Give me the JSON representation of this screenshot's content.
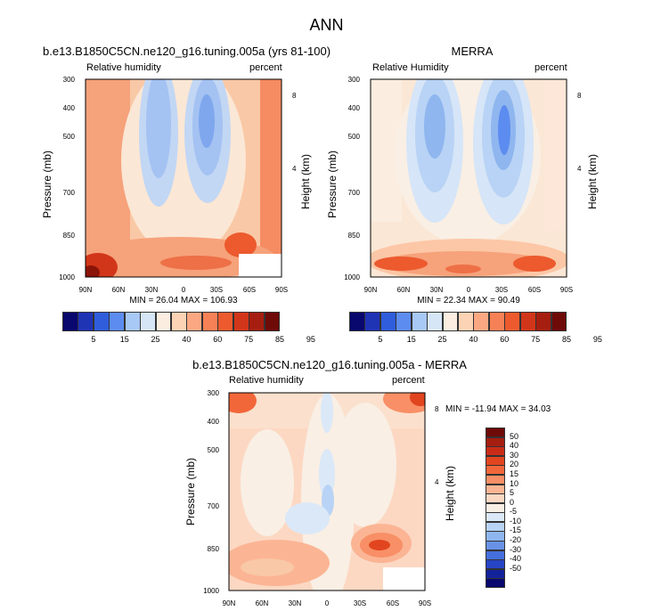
{
  "figure": {
    "title": "ANN"
  },
  "panels": [
    {
      "title": "b.e13.B1850C5CN.ne120_g16.tuning.005a (yrs 81-100)",
      "left_label": "Relative humidity",
      "right_label": "percent",
      "y_title": "Pressure (mb)",
      "y2_title": "Height (km)",
      "minmax": "MIN = 26.04  MAX = 106.93"
    },
    {
      "title": "MERRA",
      "left_label": "Relative Humidity",
      "right_label": "percent",
      "y_title": "Pressure (mb)",
      "y2_title": "Height (km)",
      "minmax": "MIN = 22.34  MAX = 90.49"
    },
    {
      "title": "b.e13.B1850C5CN.ne120_g16.tuning.005a - MERRA",
      "left_label": "Relative humidity",
      "right_label": "percent",
      "y_title": "Pressure (mb)",
      "y2_title": "Height (km)",
      "minmax": "MIN = -11.94  MAX =  34.03"
    }
  ],
  "chart_data": [
    {
      "type": "heatmap",
      "title": "b.e13.B1850C5CN.ne120_g16.tuning.005a (yrs 81-100)",
      "xlabel": "",
      "ylabel": "Pressure (mb)",
      "y2label": "Height (km)",
      "x_ticks": [
        "90N",
        "60N",
        "30N",
        "0",
        "30S",
        "60S",
        "90S"
      ],
      "y_ticks": [
        "300",
        "400",
        "500",
        "700",
        "850",
        "1000"
      ],
      "y2_ticks": [
        "8",
        "4"
      ],
      "min": 26.04,
      "max": 106.93,
      "levels": [
        5,
        15,
        25,
        40,
        60,
        75,
        85,
        95
      ]
    },
    {
      "type": "heatmap",
      "title": "MERRA",
      "xlabel": "",
      "ylabel": "Pressure (mb)",
      "y2label": "Height (km)",
      "x_ticks": [
        "90N",
        "60N",
        "30N",
        "0",
        "30S",
        "60S",
        "90S"
      ],
      "y_ticks": [
        "300",
        "400",
        "500",
        "700",
        "850",
        "1000"
      ],
      "y2_ticks": [
        "8",
        "4"
      ],
      "min": 22.34,
      "max": 90.49,
      "levels": [
        5,
        15,
        25,
        40,
        60,
        75,
        85,
        95
      ]
    },
    {
      "type": "heatmap",
      "title": "b.e13.B1850C5CN.ne120_g16.tuning.005a - MERRA",
      "xlabel": "",
      "ylabel": "Pressure (mb)",
      "y2label": "Height (km)",
      "x_ticks": [
        "90N",
        "60N",
        "30N",
        "0",
        "30S",
        "60S",
        "90S"
      ],
      "y_ticks": [
        "300",
        "400",
        "500",
        "700",
        "850",
        "1000"
      ],
      "y2_ticks": [
        "8",
        "4"
      ],
      "min": -11.94,
      "max": 34.03,
      "levels": [
        50,
        40,
        30,
        20,
        15,
        10,
        5,
        0,
        -5,
        -10,
        -15,
        -20,
        -30,
        -40,
        -50
      ]
    }
  ],
  "colorbar_abs": {
    "labels": [
      "5",
      "15",
      "25",
      "40",
      "60",
      "75",
      "85",
      "95"
    ],
    "colors": [
      "#08086e",
      "#1f33b5",
      "#2f5ddb",
      "#5d8cf0",
      "#a8c8f5",
      "#d7e6f7",
      "#fbeee0",
      "#fcd3b5",
      "#fba882",
      "#f78156",
      "#ec5a2e",
      "#d2361a",
      "#a51e10",
      "#6e0a08"
    ]
  },
  "colorbar_diff": {
    "labels": [
      "50",
      "40",
      "30",
      "20",
      "15",
      "10",
      "5",
      "0",
      "-5",
      "-10",
      "-15",
      "-20",
      "-30",
      "-40",
      "-50"
    ],
    "colors": [
      "#6e0a08",
      "#a51e10",
      "#c92c16",
      "#e1451f",
      "#f2673a",
      "#f88f66",
      "#fbb594",
      "#fcd8c3",
      "#f9efe4",
      "#dbe8f8",
      "#b8d3f5",
      "#8fb6ef",
      "#6992e6",
      "#456fdc",
      "#2744c4",
      "#13229a",
      "#08086e"
    ]
  }
}
